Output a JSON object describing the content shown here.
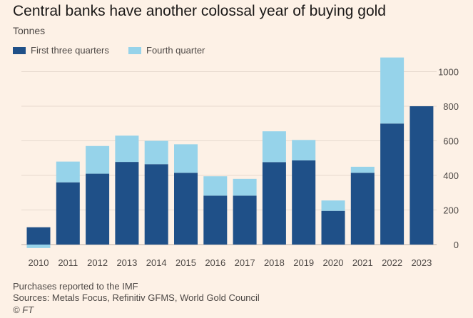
{
  "title": "Central banks have another colossal year of buying gold",
  "subtitle": "Tonnes",
  "legend": [
    {
      "label": "First three quarters",
      "color": "#1f5088"
    },
    {
      "label": "Fourth quarter",
      "color": "#96d3ea"
    }
  ],
  "chart_data": {
    "type": "bar",
    "stacked": true,
    "title": "Central banks have another colossal year of buying gold",
    "ylabel": "Tonnes",
    "categories": [
      "2010",
      "2011",
      "2012",
      "2013",
      "2014",
      "2015",
      "2016",
      "2017",
      "2018",
      "2019",
      "2020",
      "2021",
      "2022",
      "2023"
    ],
    "series": [
      {
        "name": "First three quarters",
        "color": "#1f5088",
        "values": [
          100,
          360,
          410,
          478,
          465,
          415,
          283,
          283,
          477,
          487,
          195,
          415,
          700,
          800
        ]
      },
      {
        "name": "Fourth quarter",
        "color": "#96d3ea",
        "values": [
          -20,
          120,
          160,
          152,
          135,
          165,
          112,
          97,
          178,
          118,
          60,
          35,
          382,
          0
        ]
      }
    ],
    "ylim": [
      -20,
      1100
    ],
    "yticks": [
      0,
      200,
      400,
      600,
      800,
      1000
    ],
    "grid": true,
    "legend_position": "top-left"
  },
  "footer": {
    "note": "Purchases reported to the IMF",
    "sources": "Sources: Metals Focus, Refinitiv GFMS, World Gold Council",
    "credit": "© FT"
  }
}
